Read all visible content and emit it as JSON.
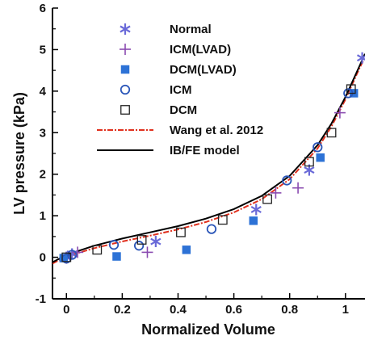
{
  "chart_data": {
    "type": "scatter",
    "title": "",
    "xlabel": "Normalized Volume",
    "ylabel": "LV pressure (kPa)",
    "xlim": [
      -0.05,
      1.07
    ],
    "ylim": [
      -1,
      6
    ],
    "xticks": [
      "0",
      "0.2",
      "0.4",
      "0.6",
      "0.8",
      "1"
    ],
    "yticks": [
      "-1",
      "0",
      "1",
      "2",
      "3",
      "4",
      "5",
      "6"
    ],
    "legend_position": "top-left inside",
    "grid": false,
    "series": [
      {
        "name": "Normal",
        "marker": "asterisk",
        "color": "#6a6ad8",
        "x": [
          0.0,
          0.02,
          0.32,
          0.68,
          0.87,
          1.06
        ],
        "y": [
          0.0,
          0.08,
          0.38,
          1.15,
          2.1,
          4.8
        ]
      },
      {
        "name": "ICM(LVAD)",
        "marker": "plus",
        "color": "#8a4bb0",
        "x": [
          0.0,
          0.04,
          0.29,
          0.75,
          0.83,
          0.98
        ],
        "y": [
          -0.02,
          0.12,
          0.12,
          1.55,
          1.67,
          3.48
        ]
      },
      {
        "name": "DCM(LVAD)",
        "marker": "filled-square",
        "color": "#2d72d6",
        "x": [
          -0.01,
          0.18,
          0.43,
          0.67,
          0.91,
          1.03
        ],
        "y": [
          -0.02,
          0.02,
          0.18,
          0.88,
          2.4,
          3.95
        ]
      },
      {
        "name": "ICM",
        "marker": "open-circle",
        "color": "#2a55b8",
        "x": [
          0.0,
          0.02,
          0.17,
          0.26,
          0.52,
          0.79,
          0.9,
          1.01
        ],
        "y": [
          -0.03,
          0.06,
          0.3,
          0.28,
          0.68,
          1.85,
          2.65,
          3.95
        ]
      },
      {
        "name": "DCM",
        "marker": "open-square",
        "color": "#222222",
        "x": [
          0.0,
          0.11,
          0.27,
          0.41,
          0.56,
          0.72,
          0.87,
          0.95,
          1.02
        ],
        "y": [
          0.0,
          0.18,
          0.42,
          0.6,
          0.9,
          1.4,
          2.3,
          3.0,
          4.05
        ]
      },
      {
        "name": "Wang et al. 2012",
        "marker": "line-dashdot",
        "color": "#e0301e",
        "x": [
          -0.05,
          0.0,
          0.1,
          0.2,
          0.3,
          0.4,
          0.5,
          0.6,
          0.7,
          0.8,
          0.9,
          0.95,
          1.0,
          1.05,
          1.07
        ],
        "y": [
          -0.15,
          0.02,
          0.22,
          0.38,
          0.52,
          0.67,
          0.85,
          1.08,
          1.4,
          1.88,
          2.62,
          3.15,
          3.8,
          4.55,
          4.82
        ]
      },
      {
        "name": "IB/FE model",
        "marker": "line-solid",
        "color": "#000000",
        "x": [
          -0.05,
          0.0,
          0.1,
          0.2,
          0.3,
          0.4,
          0.5,
          0.6,
          0.7,
          0.8,
          0.9,
          0.95,
          1.0,
          1.05,
          1.07
        ],
        "y": [
          -0.12,
          0.06,
          0.28,
          0.45,
          0.6,
          0.75,
          0.93,
          1.16,
          1.48,
          1.96,
          2.7,
          3.22,
          3.86,
          4.6,
          4.9
        ]
      }
    ]
  }
}
